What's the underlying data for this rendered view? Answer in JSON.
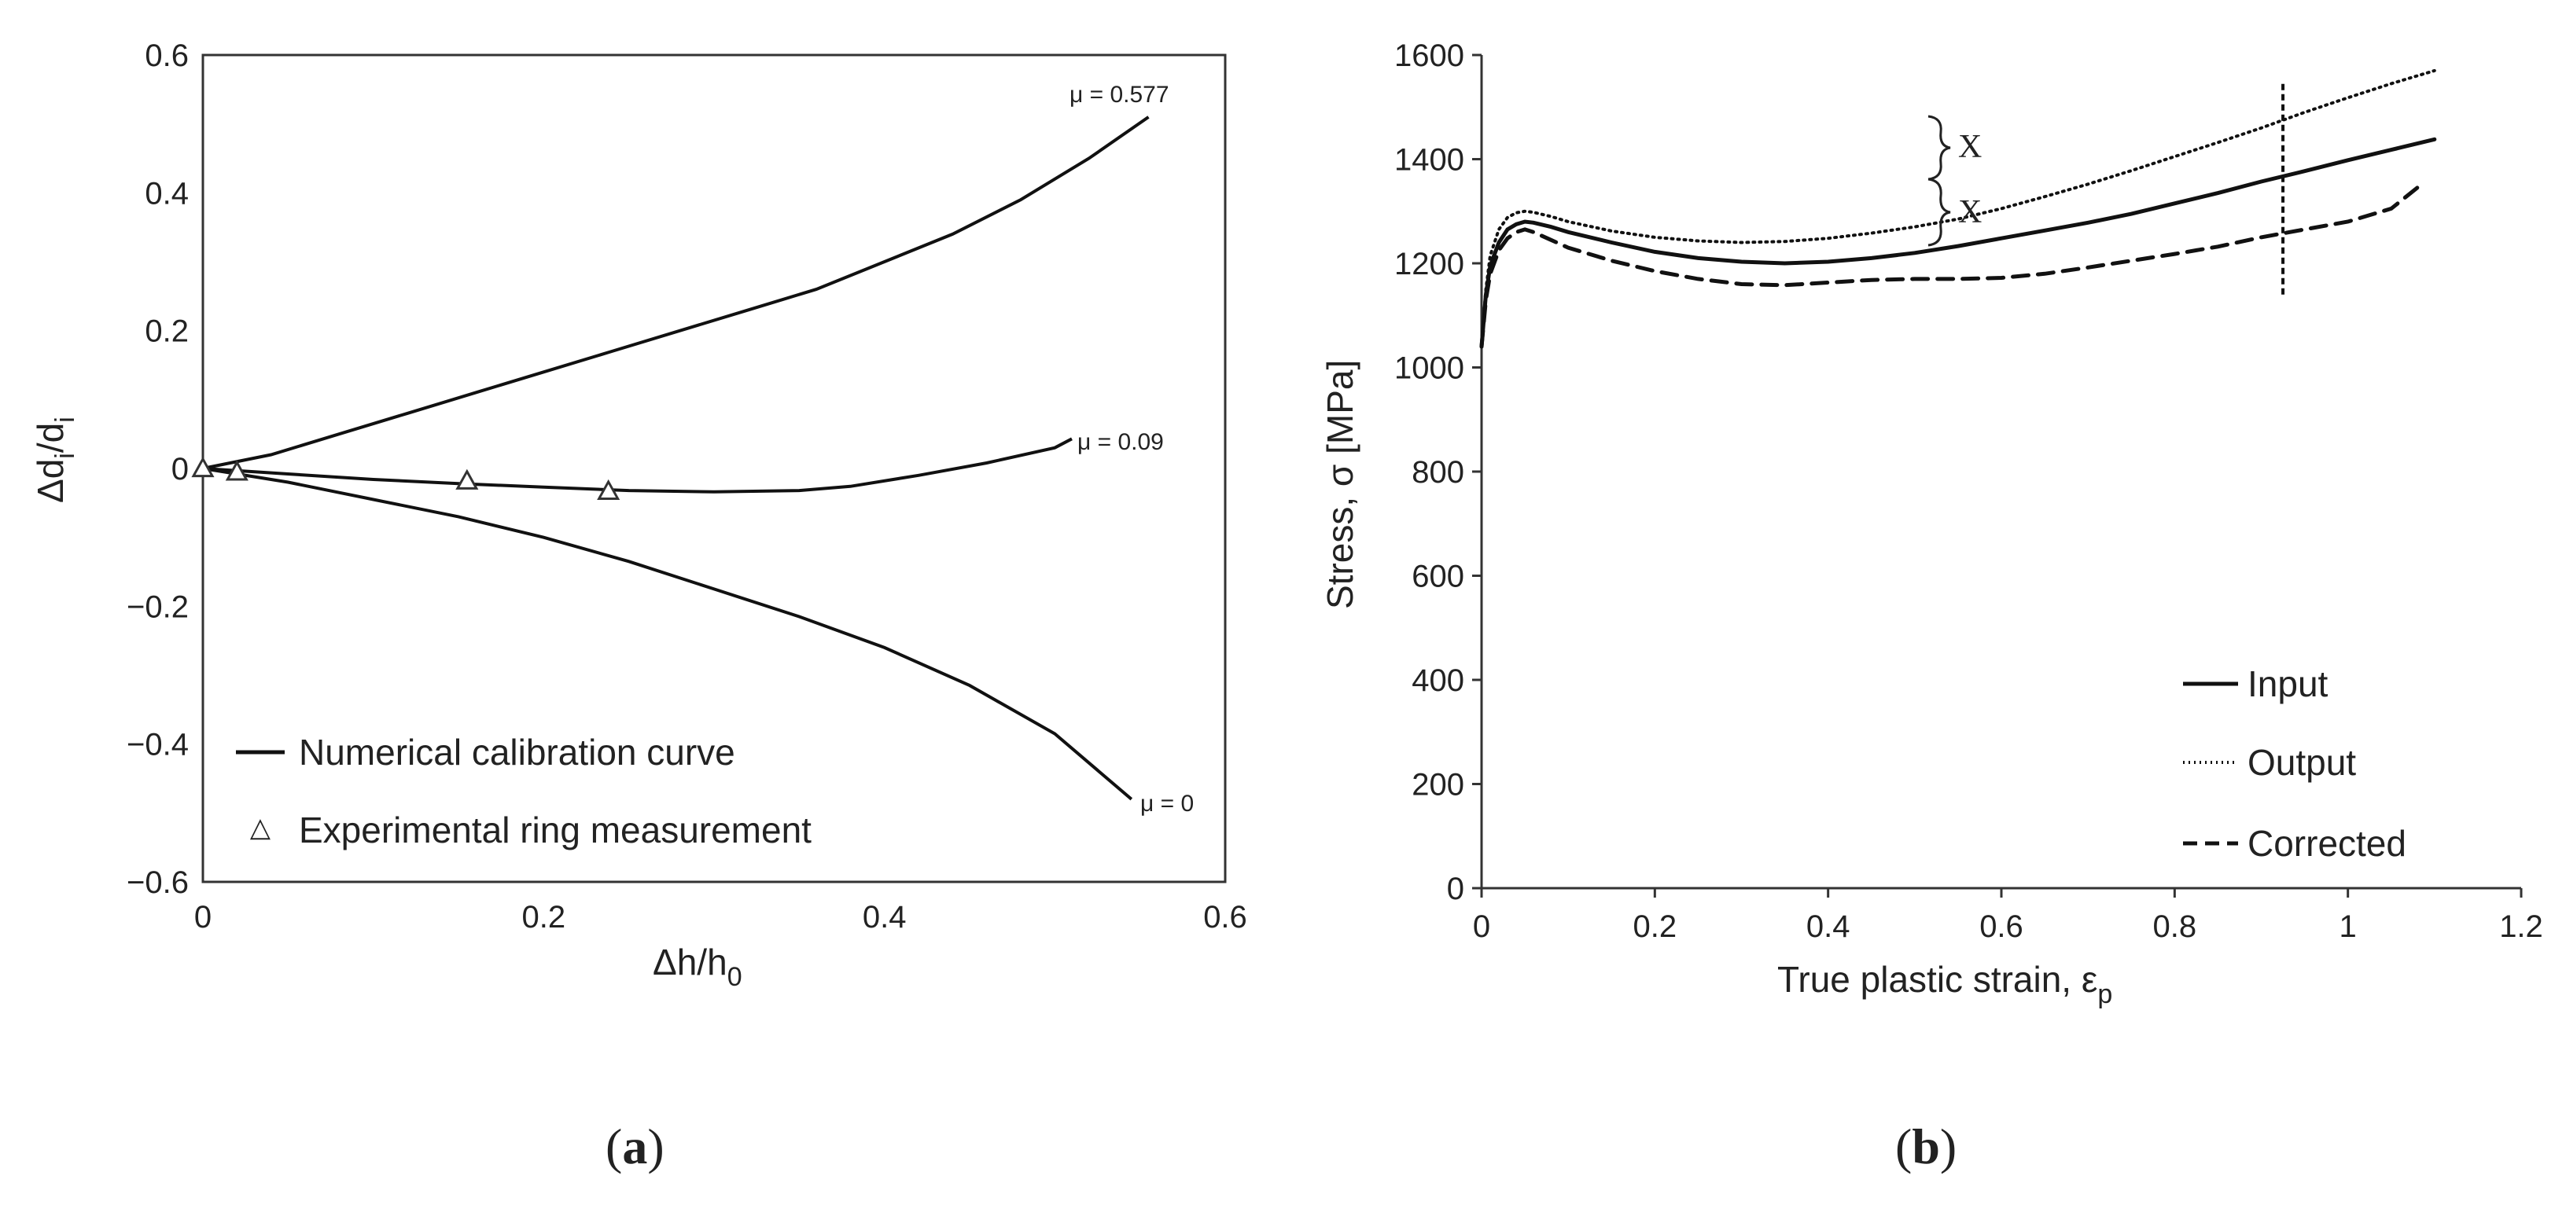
{
  "chart_data": [
    {
      "id": "a",
      "type": "line",
      "panel_label": "a",
      "xlabel": "Δh/h",
      "xlabel_sub": "0",
      "ylabel": "Δd",
      "ylabel_sub": "i",
      "ylabel_slash": "/d",
      "ylabel_sub2": "i",
      "xlim": [
        0,
        0.6
      ],
      "ylim": [
        -0.6,
        0.6
      ],
      "xticks": [
        0,
        0.2,
        0.4,
        0.6
      ],
      "xtick_labels": [
        "0",
        "0.2",
        "0.4",
        "0.6"
      ],
      "yticks": [
        -0.6,
        -0.4,
        -0.2,
        0,
        0.2,
        0.4,
        0.6
      ],
      "ytick_labels": [
        "−0.6",
        "−0.4",
        "−0.2",
        "0",
        "0.2",
        "0.4",
        "0.6"
      ],
      "series": [
        {
          "name": "μ = 0.577",
          "style": "solid",
          "x": [
            0,
            0.04,
            0.08,
            0.12,
            0.16,
            0.2,
            0.24,
            0.28,
            0.32,
            0.36,
            0.4,
            0.44,
            0.48,
            0.52,
            0.555
          ],
          "y": [
            0,
            0.02,
            0.05,
            0.08,
            0.11,
            0.14,
            0.17,
            0.2,
            0.23,
            0.26,
            0.3,
            0.34,
            0.39,
            0.45,
            0.51
          ]
        },
        {
          "name": "μ = 0.09",
          "style": "solid",
          "x": [
            0,
            0.05,
            0.1,
            0.15,
            0.2,
            0.25,
            0.3,
            0.35,
            0.38,
            0.42,
            0.46,
            0.5,
            0.51
          ],
          "y": [
            0,
            -0.008,
            -0.016,
            -0.022,
            -0.027,
            -0.032,
            -0.034,
            -0.032,
            -0.026,
            -0.01,
            0.008,
            0.03,
            0.043
          ]
        },
        {
          "name": "μ = 0",
          "style": "solid",
          "x": [
            0,
            0.05,
            0.1,
            0.15,
            0.2,
            0.25,
            0.3,
            0.35,
            0.4,
            0.45,
            0.5,
            0.545
          ],
          "y": [
            0,
            -0.02,
            -0.045,
            -0.07,
            -0.1,
            -0.135,
            -0.175,
            -0.215,
            -0.26,
            -0.315,
            -0.385,
            -0.48
          ]
        }
      ],
      "measurements": {
        "name": "Experimental ring measurement",
        "x": [
          0,
          0.02,
          0.155,
          0.238
        ],
        "y": [
          0,
          -0.005,
          -0.018,
          -0.033
        ]
      },
      "curve_labels": [
        "μ = 0.577",
        "μ = 0.09",
        "μ = 0"
      ],
      "legend": [
        "Numerical calibration curve",
        "Experimental ring measurement"
      ],
      "legend_position": "bottom-left"
    },
    {
      "id": "b",
      "type": "line",
      "panel_label": "b",
      "xlabel": "True plastic strain, ε",
      "xlabel_sub": "p",
      "ylabel": "Stress, σ [MPa]",
      "xlim": [
        0,
        1.2
      ],
      "ylim": [
        0,
        1600
      ],
      "xticks": [
        0,
        0.2,
        0.4,
        0.6,
        0.8,
        1,
        1.2
      ],
      "xtick_labels": [
        "0",
        "0.2",
        "0.4",
        "0.6",
        "0.8",
        "1",
        "1.2"
      ],
      "yticks": [
        0,
        200,
        400,
        600,
        800,
        1000,
        1200,
        1400,
        1600
      ],
      "ytick_labels": [
        "0",
        "200",
        "400",
        "600",
        "800",
        "1000",
        "1200",
        "1400",
        "1600"
      ],
      "series": [
        {
          "name": "Input",
          "style": "solid",
          "x": [
            0,
            0.005,
            0.01,
            0.02,
            0.03,
            0.04,
            0.05,
            0.06,
            0.08,
            0.1,
            0.15,
            0.2,
            0.25,
            0.3,
            0.35,
            0.4,
            0.45,
            0.5,
            0.55,
            0.6,
            0.65,
            0.7,
            0.75,
            0.8,
            0.85,
            0.9,
            0.95,
            1.0,
            1.05,
            1.1
          ],
          "y": [
            1040,
            1140,
            1195,
            1240,
            1265,
            1275,
            1280,
            1278,
            1270,
            1260,
            1240,
            1222,
            1210,
            1203,
            1200,
            1203,
            1210,
            1220,
            1233,
            1248,
            1263,
            1278,
            1295,
            1315,
            1335,
            1357,
            1377,
            1398,
            1418,
            1438
          ]
        },
        {
          "name": "Output",
          "style": "dotted",
          "x": [
            0,
            0.005,
            0.01,
            0.02,
            0.03,
            0.04,
            0.05,
            0.06,
            0.08,
            0.1,
            0.15,
            0.2,
            0.25,
            0.3,
            0.35,
            0.4,
            0.45,
            0.5,
            0.55,
            0.6,
            0.65,
            0.7,
            0.75,
            0.8,
            0.85,
            0.9,
            0.95,
            1.0,
            1.05,
            1.1
          ],
          "y": [
            1040,
            1150,
            1215,
            1265,
            1288,
            1297,
            1300,
            1298,
            1290,
            1280,
            1262,
            1250,
            1243,
            1240,
            1242,
            1248,
            1258,
            1270,
            1285,
            1305,
            1328,
            1352,
            1378,
            1405,
            1432,
            1460,
            1490,
            1518,
            1545,
            1570
          ]
        },
        {
          "name": "Corrected",
          "style": "dashed",
          "x": [
            0,
            0.005,
            0.01,
            0.02,
            0.03,
            0.04,
            0.05,
            0.06,
            0.08,
            0.1,
            0.15,
            0.2,
            0.25,
            0.3,
            0.35,
            0.4,
            0.45,
            0.5,
            0.55,
            0.6,
            0.65,
            0.7,
            0.75,
            0.8,
            0.85,
            0.9,
            0.95,
            1.0,
            1.05,
            1.08
          ],
          "y": [
            1040,
            1130,
            1180,
            1225,
            1248,
            1260,
            1265,
            1260,
            1245,
            1230,
            1205,
            1185,
            1170,
            1160,
            1158,
            1163,
            1168,
            1170,
            1170,
            1172,
            1180,
            1192,
            1205,
            1218,
            1232,
            1250,
            1265,
            1280,
            1305,
            1345
          ]
        }
      ],
      "marker_line_x": 0.925,
      "marker_line_y": [
        1140,
        1550
      ],
      "annotations": [
        "X",
        "X"
      ],
      "legend": [
        "Input",
        "Output",
        "Corrected"
      ],
      "legend_position": "bottom-right"
    }
  ]
}
